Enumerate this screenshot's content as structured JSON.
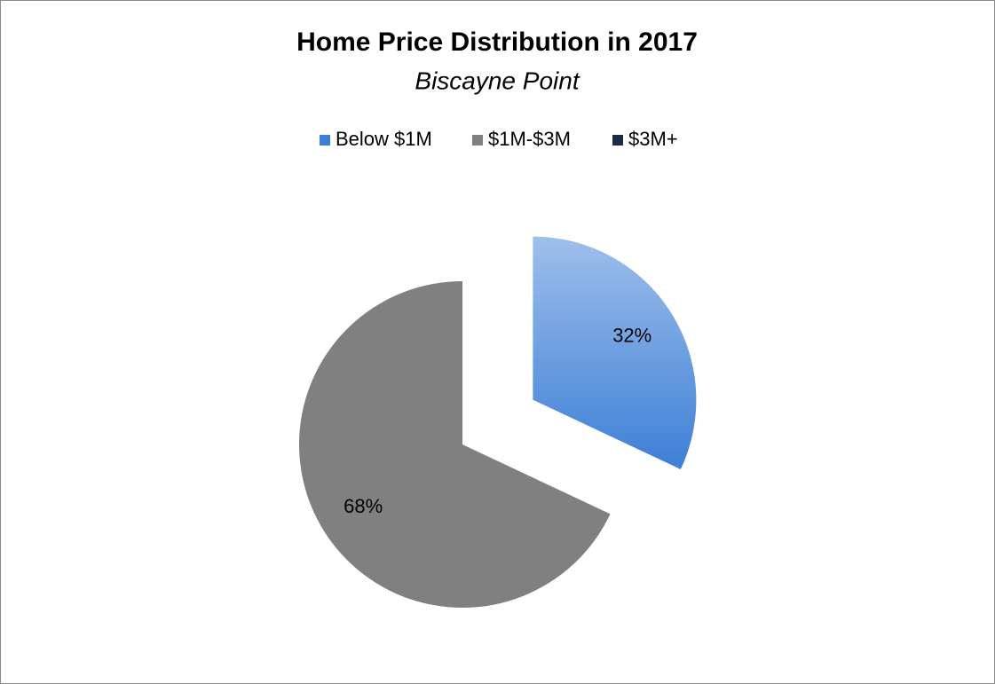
{
  "chart_data": {
    "type": "pie",
    "title": "Home Price Distribution in 2017",
    "subtitle": "Biscayne Point",
    "categories": [
      "Below $1M",
      "$1M-$3M",
      "$3M+"
    ],
    "values": [
      32,
      68,
      0
    ],
    "value_labels": [
      "32%",
      "68%",
      null
    ],
    "colors": [
      "#3d7fd6",
      "#808080",
      "#1b2b45"
    ],
    "explode": [
      true,
      false,
      false
    ],
    "legend": "top"
  }
}
